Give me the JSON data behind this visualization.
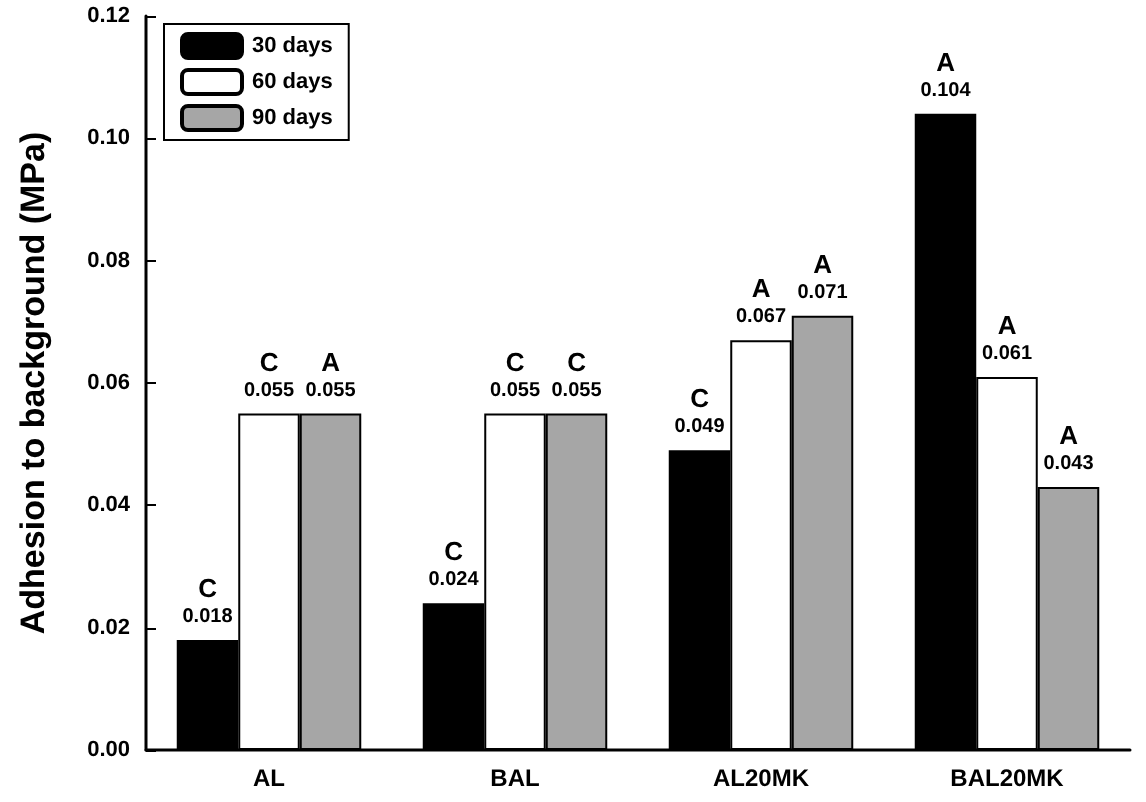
{
  "chart_data": {
    "type": "bar",
    "ylabel": "Adhesion to background (MPa)",
    "categories": [
      "AL",
      "BAL",
      "AL20MK",
      "BAL20MK"
    ],
    "series": [
      {
        "name": "30 days",
        "color": "#000000",
        "values": [
          0.018,
          0.024,
          0.049,
          0.104
        ],
        "value_labels": [
          "C\n0.018",
          "C\n0.024",
          "C\n0.049",
          "A\n0.104"
        ]
      },
      {
        "name": "60 days",
        "color": "#ffffff",
        "values": [
          0.055,
          0.055,
          0.067,
          0.061
        ],
        "value_labels": [
          "C\n0.055",
          "C\n0.055",
          "A\n0.067",
          "A\n0.061"
        ]
      },
      {
        "name": "90 days",
        "color": "#a6a6a6",
        "values": [
          0.055,
          0.055,
          0.071,
          0.043
        ],
        "value_labels": [
          "A\n0.055",
          "C\n0.055",
          "A\n0.071",
          "A\n0.043"
        ]
      }
    ],
    "ylim": [
      0,
      0.12
    ],
    "yticks": [
      {
        "value": 0,
        "label": "0.00"
      },
      {
        "value": 0.02,
        "label": "0.02"
      },
      {
        "value": 0.04,
        "label": "0.04"
      },
      {
        "value": 0.06,
        "label": "0.06"
      },
      {
        "value": 0.08,
        "label": "0.08"
      },
      {
        "value": 0.1,
        "label": "0.10"
      },
      {
        "value": 0.12,
        "label": "0.12"
      }
    ],
    "grid": false,
    "legend": "top left"
  }
}
